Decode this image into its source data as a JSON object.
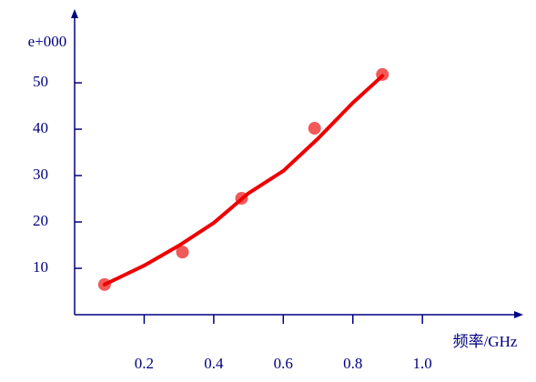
{
  "chart_data": {
    "type": "scatter",
    "y_label": "e+000",
    "x_label": "频率/GHz",
    "xlim": [
      0,
      1.29
    ],
    "ylim": [
      0,
      65.9
    ],
    "xticks": [
      0.2,
      0.4,
      0.6,
      0.8,
      {
        "value": 1,
        "label": "1.0"
      }
    ],
    "yticks": [
      10,
      20,
      30,
      40,
      50
    ],
    "axis_color": "#000080",
    "series": [
      {
        "type": "scatter",
        "color": "#f03c3c",
        "x": [
          0.086,
          0.31,
          0.48,
          0.69,
          0.885
        ],
        "values": [
          6.5,
          13.5,
          25.1,
          40.2,
          51.8
        ]
      },
      {
        "type": "line",
        "color": "#ee0000",
        "x": [
          0.086,
          0.2,
          0.3,
          0.4,
          0.5,
          0.6,
          0.7,
          0.8,
          0.885
        ],
        "values": [
          6.5,
          10.6,
          14.9,
          19.8,
          26.2,
          31,
          38,
          45.7,
          51.5
        ]
      }
    ]
  }
}
